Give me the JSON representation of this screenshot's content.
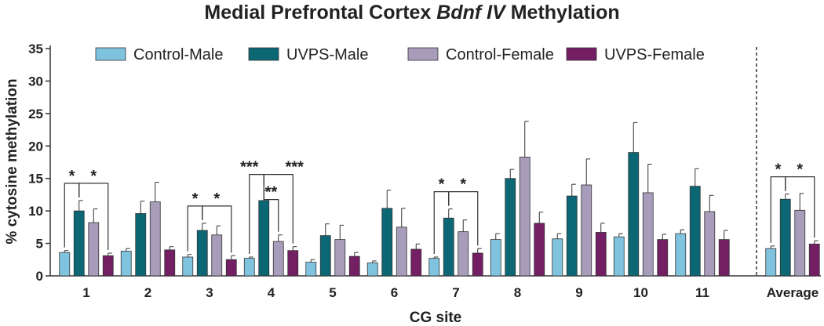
{
  "chart_data": {
    "type": "bar",
    "title": {
      "prefix": "Medial Prefrontal Cortex ",
      "italic": "Bdnf IV",
      "suffix": " Methylation"
    },
    "xlabel": "CG site",
    "ylabel": "% cytosine methylation",
    "ylim": [
      0,
      35
    ],
    "yticks": [
      0,
      5,
      10,
      15,
      20,
      25,
      30,
      35
    ],
    "categories": [
      "1",
      "2",
      "3",
      "4",
      "5",
      "6",
      "7",
      "8",
      "9",
      "10",
      "11",
      "Average"
    ],
    "legend_position": "top",
    "colors": {
      "Control-Male": "#7fc3df",
      "UVPS-Male": "#0c6775",
      "Control-Female": "#a79cb9",
      "UVPS-Female": "#741f63"
    },
    "series": [
      {
        "name": "Control-Male",
        "values": [
          3.6,
          3.8,
          2.9,
          2.7,
          2.1,
          2.0,
          2.7,
          5.6,
          5.7,
          6.0,
          6.5,
          4.2
        ],
        "errors": [
          0.3,
          0.4,
          0.4,
          0.2,
          0.4,
          0.3,
          0.2,
          0.9,
          0.8,
          0.5,
          0.6,
          0.4
        ]
      },
      {
        "name": "UVPS-Male",
        "values": [
          10.0,
          9.6,
          7.0,
          11.6,
          6.2,
          10.4,
          8.9,
          15.0,
          12.3,
          19.0,
          13.8,
          11.8
        ],
        "errors": [
          1.6,
          1.9,
          1.1,
          1.6,
          1.8,
          2.8,
          1.4,
          1.4,
          1.8,
          4.6,
          2.7,
          0.8
        ]
      },
      {
        "name": "Control-Female",
        "values": [
          8.2,
          11.4,
          6.3,
          5.3,
          5.6,
          7.5,
          6.8,
          18.3,
          14.0,
          12.8,
          9.9,
          10.1
        ],
        "errors": [
          2.1,
          3.0,
          1.4,
          1.0,
          2.2,
          2.9,
          1.8,
          5.5,
          4.0,
          4.4,
          2.5,
          2.6
        ]
      },
      {
        "name": "UVPS-Female",
        "values": [
          3.1,
          4.0,
          2.5,
          3.9,
          3.0,
          4.1,
          3.5,
          8.1,
          6.7,
          5.6,
          5.6,
          4.9
        ],
        "errors": [
          0.4,
          0.5,
          0.6,
          0.6,
          0.6,
          0.8,
          0.7,
          1.7,
          1.4,
          0.8,
          1.4,
          0.5
        ]
      }
    ],
    "significance": [
      {
        "category": "1",
        "stars": [
          "*",
          "*"
        ]
      },
      {
        "category": "3",
        "stars": [
          "*",
          "*"
        ]
      },
      {
        "category": "4",
        "stars": [
          "***",
          "***",
          "**"
        ]
      },
      {
        "category": "7",
        "stars": [
          "*",
          "*"
        ]
      },
      {
        "category": "Average",
        "stars": [
          "*",
          "*"
        ]
      }
    ]
  }
}
